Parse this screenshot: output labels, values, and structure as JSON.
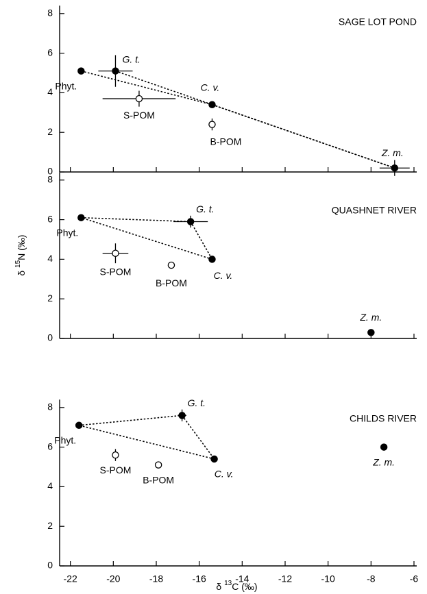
{
  "chart_data": [
    {
      "type": "scatter",
      "title": "SAGE LOT POND",
      "points": {
        "labels": [
          "Phyt.",
          "G. t.",
          "S-POM",
          "C. v.",
          "B-POM",
          "Z. m."
        ],
        "label_italic": [
          false,
          true,
          false,
          true,
          false,
          true
        ],
        "x": [
          -21.5,
          -19.9,
          -18.8,
          -15.4,
          -15.4,
          -6.9
        ],
        "y": [
          5.1,
          5.1,
          3.7,
          3.4,
          2.4,
          0.2
        ],
        "xerr": [
          null,
          0.8,
          1.7,
          null,
          null,
          0.7
        ],
        "yerr": [
          null,
          0.8,
          0.4,
          null,
          0.3,
          0.4
        ],
        "filled": [
          true,
          true,
          false,
          true,
          false,
          true
        ]
      },
      "links": [
        [
          0,
          3
        ],
        [
          3,
          5
        ],
        [
          1,
          5
        ]
      ],
      "xlim": [
        -22.5,
        -6
      ],
      "xticks": [
        -22,
        -20,
        -18,
        -16,
        -14,
        -12,
        -10,
        -8,
        -6
      ],
      "show_xtick_labels": false,
      "ylim": [
        0,
        8.4
      ],
      "yticks": [
        0,
        2,
        4,
        6,
        8
      ]
    },
    {
      "type": "scatter",
      "title": "QUASHNET RIVER",
      "ylabel": {
        "prefix": "δ ",
        "sup": "15",
        "main": "N (‰)"
      },
      "points": {
        "labels": [
          "Phyt.",
          "G. t.",
          "S-POM",
          "C. v.",
          "B-POM",
          "Z. m."
        ],
        "label_italic": [
          false,
          true,
          false,
          true,
          false,
          true
        ],
        "x": [
          -21.5,
          -16.4,
          -19.9,
          -15.4,
          -17.3,
          -8.0
        ],
        "y": [
          6.1,
          5.9,
          4.3,
          4.0,
          3.7,
          0.3
        ],
        "xerr": [
          null,
          0.8,
          0.6,
          null,
          null,
          null
        ],
        "yerr": [
          null,
          0.3,
          0.5,
          null,
          null,
          null
        ],
        "filled": [
          true,
          true,
          false,
          true,
          false,
          true
        ]
      },
      "links": [
        [
          0,
          1
        ],
        [
          1,
          3
        ],
        [
          3,
          0
        ]
      ],
      "xlim": [
        -22.5,
        -6
      ],
      "xticks": [
        -22,
        -20,
        -18,
        -16,
        -14,
        -12,
        -10,
        -8,
        -6
      ],
      "show_xtick_labels": false,
      "ylim": [
        0,
        8.4
      ],
      "yticks": [
        0,
        2,
        4,
        6,
        8
      ]
    },
    {
      "type": "scatter",
      "title": "CHILDS RIVER",
      "xlabel": {
        "prefix": "δ ",
        "sup": "13",
        "main": "C (‰)"
      },
      "points": {
        "labels": [
          "Phyt.",
          "G. t.",
          "S-POM",
          "B-POM",
          "C. v.",
          "Z. m."
        ],
        "label_italic": [
          false,
          true,
          false,
          false,
          true,
          true
        ],
        "x": [
          -21.6,
          -16.8,
          -19.9,
          -17.9,
          -15.3,
          -7.4
        ],
        "y": [
          7.1,
          7.6,
          5.6,
          5.1,
          5.4,
          6.0
        ],
        "xerr": [
          null,
          0.2,
          null,
          null,
          null,
          null
        ],
        "yerr": [
          null,
          0.3,
          0.3,
          null,
          null,
          null
        ],
        "filled": [
          true,
          true,
          false,
          false,
          true,
          true
        ]
      },
      "links": [
        [
          0,
          1
        ],
        [
          1,
          4
        ],
        [
          4,
          0
        ]
      ],
      "xlim": [
        -22.5,
        -6
      ],
      "xticks": [
        -22,
        -20,
        -18,
        -16,
        -14,
        -12,
        -10,
        -8,
        -6
      ],
      "show_xtick_labels": true,
      "ylim": [
        0,
        8.4
      ],
      "yticks": [
        0,
        2,
        4,
        6,
        8
      ]
    }
  ]
}
